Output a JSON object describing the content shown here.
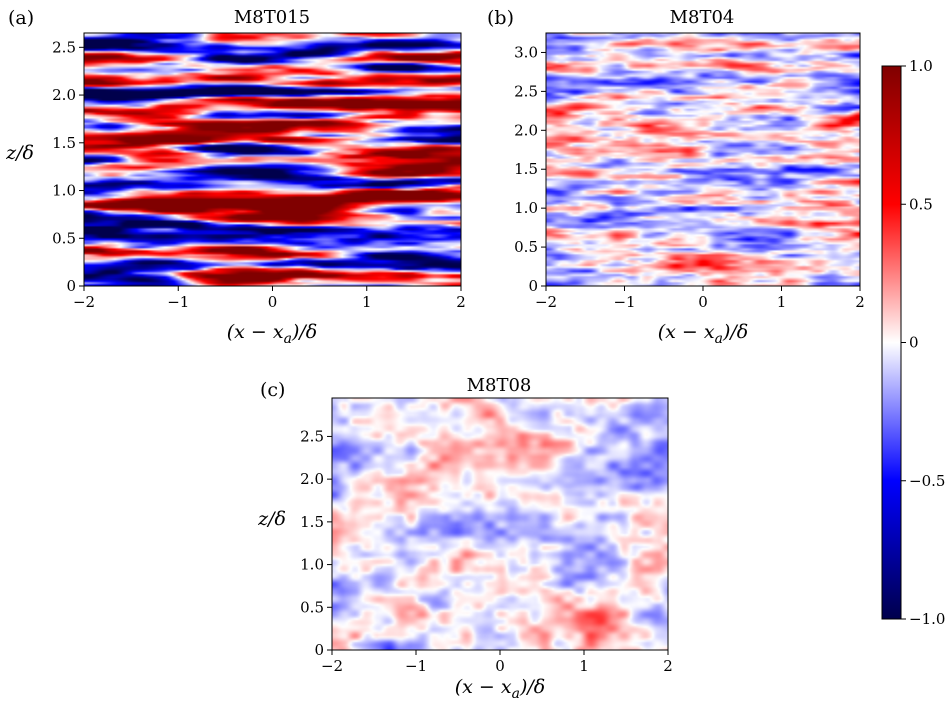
{
  "chart_data": {
    "type": "heatmap",
    "panels": [
      {
        "id": "a",
        "label": "(a)",
        "title": "M8T015",
        "xlabel": "(x − x_a)/δ",
        "xlabel_parts": {
          "pre": "(x − x",
          "sub": "a",
          "post": ")/δ"
        },
        "ylabel": "z/δ",
        "xlim": [
          -2,
          2
        ],
        "ylim": [
          0,
          2.65
        ],
        "xticks": [
          -2,
          -1,
          0,
          1,
          2
        ],
        "xtick_labels": [
          "−2",
          "−1",
          "0",
          "1",
          "2"
        ],
        "yticks": [
          0,
          0.5,
          1.0,
          1.5,
          2.0,
          2.5
        ],
        "ytick_labels": [
          "0",
          "0.5",
          "1.0",
          "1.5",
          "2.0",
          "2.5"
        ],
        "field_description": "strongly streaky red/blue bands elongated in x",
        "amplitude": 1.0
      },
      {
        "id": "b",
        "label": "(b)",
        "title": "M8T04",
        "xlabel": "(x − x_a)/δ",
        "xlabel_parts": {
          "pre": "(x − x",
          "sub": "a",
          "post": ")/δ"
        },
        "ylabel": "",
        "xlim": [
          -2,
          2
        ],
        "ylim": [
          0,
          3.25
        ],
        "xticks": [
          -2,
          -1,
          0,
          1,
          2
        ],
        "xtick_labels": [
          "−2",
          "−1",
          "0",
          "1",
          "2"
        ],
        "yticks": [
          0,
          0.5,
          1.0,
          1.5,
          2.0,
          2.5,
          3.0
        ],
        "ytick_labels": [
          "0",
          "0.5",
          "1.0",
          "1.5",
          "2.0",
          "2.5",
          "3.0"
        ],
        "field_description": "weaker streaks, light red/blue",
        "amplitude": 0.4
      },
      {
        "id": "c",
        "label": "(c)",
        "title": "M8T08",
        "xlabel": "(x − x_a)/δ",
        "xlabel_parts": {
          "pre": "(x − x",
          "sub": "a",
          "post": ")/δ"
        },
        "ylabel": "z/δ",
        "xlim": [
          -2,
          2
        ],
        "ylim": [
          0,
          2.95
        ],
        "xticks": [
          -2,
          -1,
          0,
          1,
          2
        ],
        "xtick_labels": [
          "−2",
          "−1",
          "0",
          "1",
          "2"
        ],
        "yticks": [
          0,
          0.5,
          1.0,
          1.5,
          2.0,
          2.5
        ],
        "ytick_labels": [
          "0",
          "0.5",
          "1.0",
          "1.5",
          "2.0",
          "2.5"
        ],
        "field_description": "weak, nearly isotropic patches, light pink/blue",
        "amplitude": 0.22
      }
    ],
    "colorbar": {
      "cmap": "seismic",
      "vmin": -1.0,
      "vmax": 1.0,
      "ticks": [
        1.0,
        0.5,
        0,
        -0.5,
        -1.0
      ],
      "tick_labels": [
        "1.0",
        "0.5",
        "0",
        "−0.5",
        "−1.0"
      ],
      "colors": {
        "low": "#00004c",
        "mid_low": "#0000ff",
        "mid": "#ffffff",
        "mid_high": "#ff0000",
        "high": "#800000"
      }
    }
  }
}
